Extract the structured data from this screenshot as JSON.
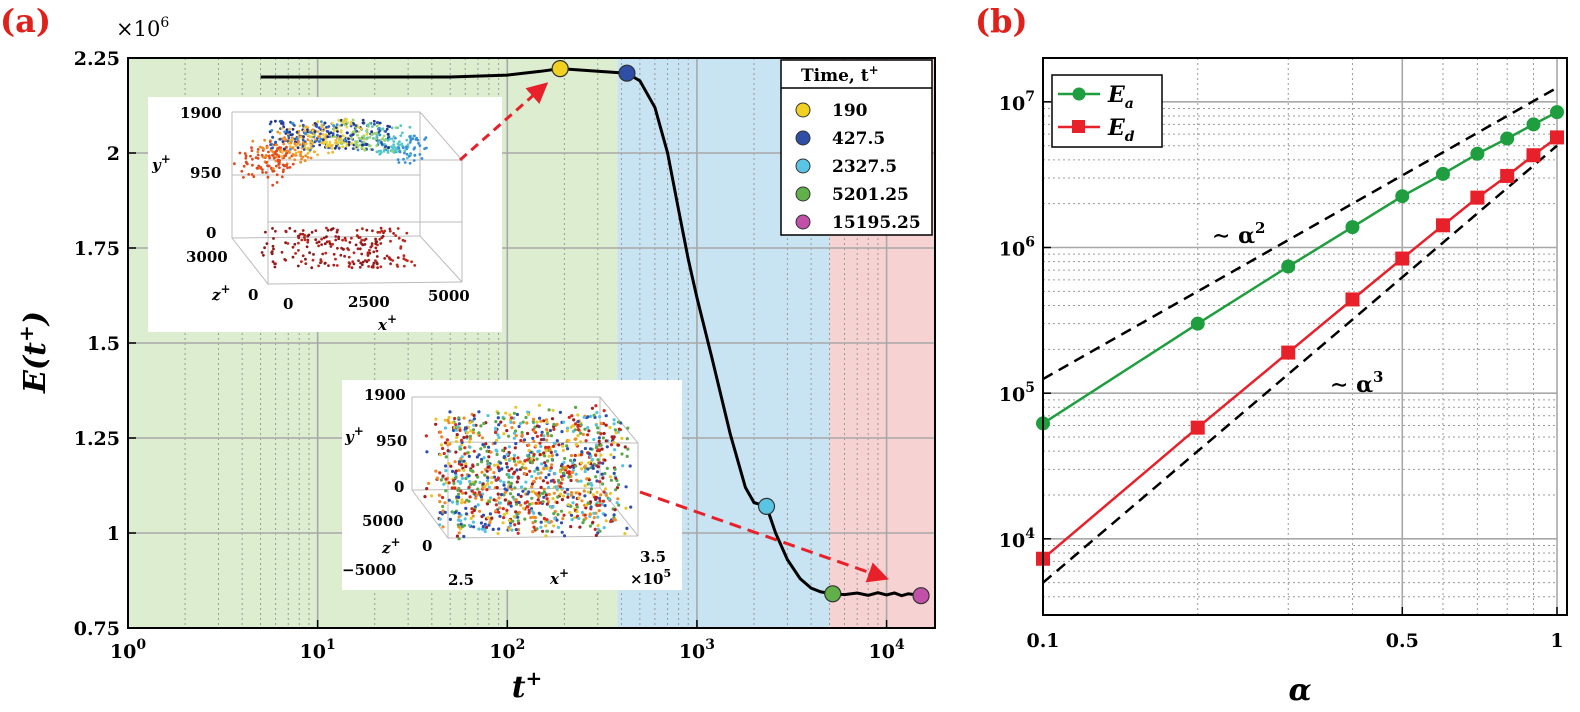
{
  "chart_data": [
    {
      "panel": "(a)",
      "type": "line",
      "xscale": "log",
      "xlim": [
        1,
        18000
      ],
      "ylim": [
        0.75,
        2.25
      ],
      "y_multiplier": "×10",
      "y_multiplier_exp": "6",
      "xlabel": "t",
      "xlabel_sup": "+",
      "ylabel": "E(t",
      "ylabel_sup": "+",
      "ylabel_close": ")",
      "xticks": [
        1,
        10,
        100,
        1000,
        10000
      ],
      "xtick_base": "10",
      "xtick_exps": [
        "0",
        "1",
        "2",
        "3",
        "4"
      ],
      "yticks": [
        0.75,
        1,
        1.25,
        1.5,
        1.75,
        2,
        2.25
      ],
      "ytick_labels": [
        "0.75",
        "1",
        "1.25",
        "1.5",
        "1.75",
        "2",
        "2.25"
      ],
      "regions": [
        {
          "x0": 1,
          "x1": 380,
          "color": "#dcedd0"
        },
        {
          "x0": 380,
          "x1": 5000,
          "color": "#c8e3f2"
        },
        {
          "x0": 5000,
          "x1": 18000,
          "color": "#f7d2d2"
        }
      ],
      "series": [
        {
          "name": "E",
          "x": [
            5,
            10,
            20,
            50,
            100,
            150,
            190,
            300,
            427.5,
            500,
            600,
            700,
            800,
            900,
            1000,
            1200,
            1500,
            1800,
            2000,
            2327.5,
            2600,
            3000,
            3500,
            4000,
            4500,
            5201.25,
            6000,
            7000,
            8000,
            9000,
            10000,
            11000,
            12000,
            13000,
            14000,
            15195.25
          ],
          "y": [
            2.2,
            2.2,
            2.2,
            2.2,
            2.205,
            2.215,
            2.222,
            2.215,
            2.21,
            2.19,
            2.12,
            2.0,
            1.85,
            1.72,
            1.62,
            1.46,
            1.26,
            1.12,
            1.08,
            1.07,
            1.0,
            0.93,
            0.88,
            0.855,
            0.845,
            0.84,
            0.838,
            0.842,
            0.836,
            0.843,
            0.837,
            0.842,
            0.835,
            0.84,
            0.838,
            0.835
          ]
        }
      ],
      "markers": [
        {
          "t": 190,
          "E": 2.222,
          "color": "#f0d020"
        },
        {
          "t": 427.5,
          "E": 2.21,
          "color": "#2f4fa6"
        },
        {
          "t": 2327.5,
          "E": 1.07,
          "color": "#5ac4e4"
        },
        {
          "t": 5201.25,
          "E": 0.84,
          "color": "#62b04a"
        },
        {
          "t": 15195.25,
          "E": 0.835,
          "color": "#c050a8"
        }
      ],
      "legend": {
        "title": "Time, t",
        "title_sup": "+",
        "entries": [
          {
            "label": "190",
            "color": "#f0d020"
          },
          {
            "label": "427.5",
            "color": "#2f4fa6"
          },
          {
            "label": "2327.5",
            "color": "#5ac4e4"
          },
          {
            "label": "5201.25",
            "color": "#62b04a"
          },
          {
            "label": "15195.25",
            "color": "#c050a8"
          }
        ]
      },
      "insets": [
        {
          "name": "early-distribution",
          "yticks": [
            "1900",
            "950",
            "0"
          ],
          "zticks": [
            "3000",
            "0"
          ],
          "xticks": [
            "0",
            "2500",
            "5000"
          ],
          "xlabel": "x",
          "ylabel": "y",
          "zlabel": "z",
          "sup": "+"
        },
        {
          "name": "late-distribution",
          "yticks": [
            "1900",
            "950",
            "0"
          ],
          "zticks": [
            "5000",
            "0",
            "−5000"
          ],
          "xticks": [
            "2.5",
            "3.5"
          ],
          "x_multiplier": "×10",
          "x_multiplier_exp": "5",
          "xlabel": "x",
          "ylabel": "y",
          "zlabel": "z",
          "sup": "+"
        }
      ]
    },
    {
      "panel": "(b)",
      "type": "line",
      "xscale": "log",
      "yscale": "log",
      "xlim": [
        0.1,
        1
      ],
      "ylim": [
        3000,
        20000000
      ],
      "xlabel": "α",
      "xticks": [
        0.1,
        0.5,
        1
      ],
      "xtick_labels": [
        "0.1",
        "0.5",
        "1"
      ],
      "yticks": [
        10000,
        100000,
        1000000,
        10000000
      ],
      "ytick_base": "10",
      "ytick_exps": [
        "4",
        "5",
        "6",
        "7"
      ],
      "series": [
        {
          "name": "E_a",
          "label": "E",
          "sub": "a",
          "color": "#1e9e3e",
          "marker": "circle",
          "x": [
            0.1,
            0.2,
            0.3,
            0.4,
            0.5,
            0.6,
            0.7,
            0.8,
            0.9,
            1.0
          ],
          "y": [
            62000,
            300000,
            740000,
            1380000,
            2250000,
            3200000,
            4400000,
            5600000,
            7000000,
            8500000
          ]
        },
        {
          "name": "E_d",
          "label": "E",
          "sub": "d",
          "color": "#e8202a",
          "marker": "square",
          "x": [
            0.1,
            0.2,
            0.3,
            0.4,
            0.5,
            0.6,
            0.7,
            0.8,
            0.9,
            1.0
          ],
          "y": [
            7300,
            58000,
            190000,
            440000,
            840000,
            1420000,
            2200000,
            3100000,
            4300000,
            5700000
          ]
        }
      ],
      "reference_lines": [
        {
          "label": "∼ α",
          "sup": "2",
          "x": [
            0.1,
            1.0
          ],
          "y": [
            125000,
            12500000
          ]
        },
        {
          "label": "∼ α",
          "sup": "3",
          "x": [
            0.1,
            1.0
          ],
          "y": [
            5000,
            5000000
          ]
        }
      ]
    }
  ]
}
